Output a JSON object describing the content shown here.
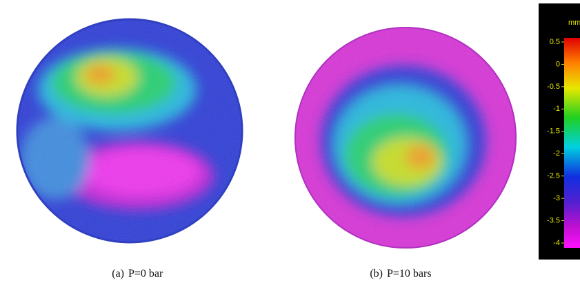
{
  "panels": [
    {
      "label": "(a)",
      "caption": "P=0 bar"
    },
    {
      "label": "(b)",
      "caption": "P=10 bars"
    }
  ],
  "colorbar": {
    "unit": "mm",
    "ticks": [
      0.5,
      0,
      -0.5,
      -1,
      -1.5,
      -2,
      -2.5,
      -3,
      -3.5,
      -4
    ]
  }
}
